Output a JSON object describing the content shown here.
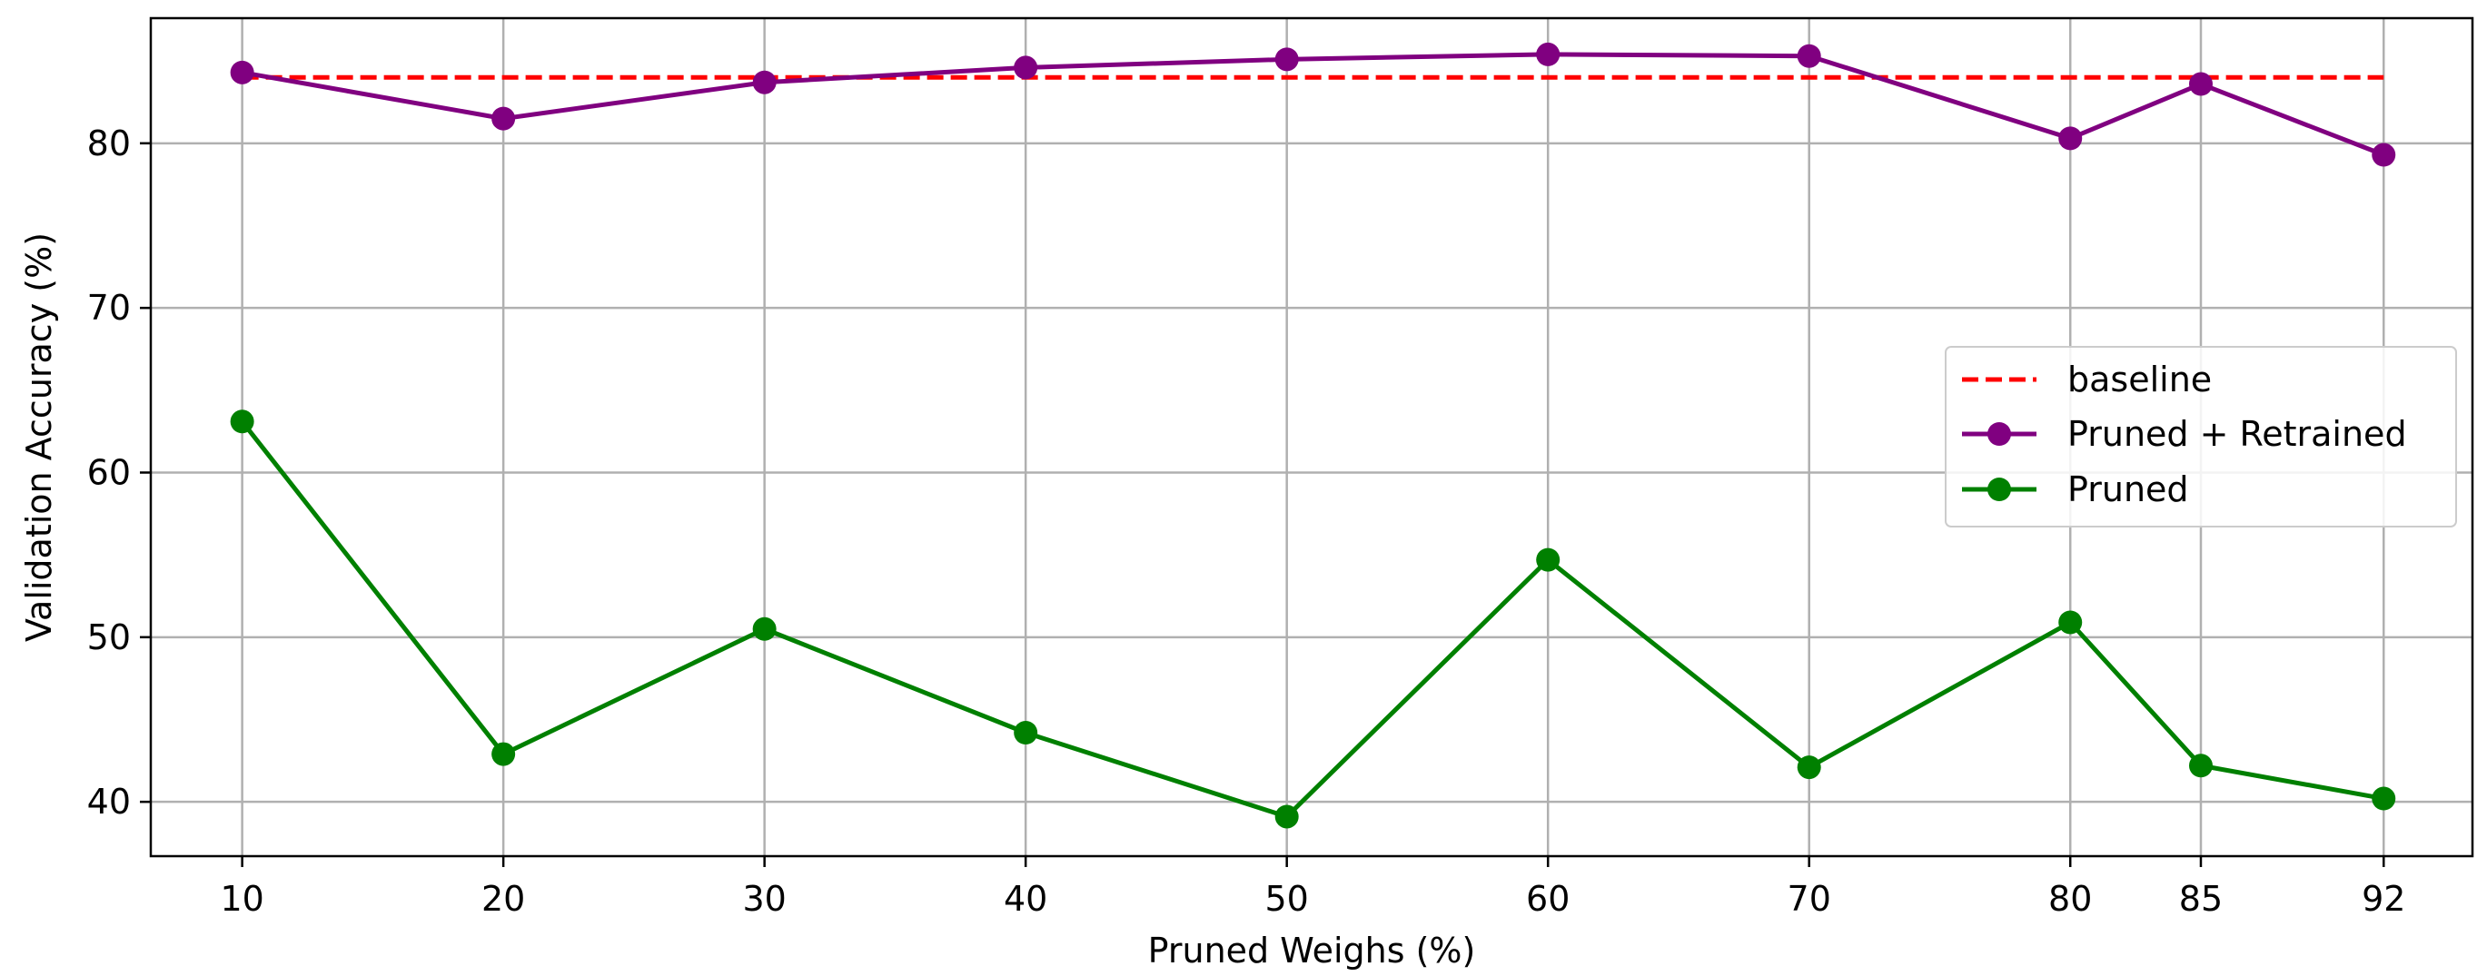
{
  "chart_data": {
    "type": "line",
    "xlabel": "Pruned Weighs (%)",
    "ylabel": "Validation Accuracy (%)",
    "x": [
      10,
      20,
      30,
      40,
      50,
      60,
      70,
      80,
      85,
      92
    ],
    "xlim": [
      6.5,
      95.4
    ],
    "ylim": [
      36.7,
      87.6
    ],
    "xticks": [
      10,
      20,
      30,
      40,
      50,
      60,
      70,
      80,
      85,
      92
    ],
    "yticks": [
      40,
      50,
      60,
      70,
      80
    ],
    "grid": true,
    "legend_position": "center-right",
    "baseline": {
      "name": "baseline",
      "value": 84,
      "color": "#ff0000",
      "style": "dashed"
    },
    "series": [
      {
        "name": "Pruned + Retrained",
        "color": "#800080",
        "values": [
          84.3,
          81.5,
          83.7,
          84.6,
          85.1,
          85.4,
          85.3,
          80.3,
          83.6,
          79.3
        ]
      },
      {
        "name": "Pruned",
        "color": "#008000",
        "values": [
          63.1,
          42.9,
          50.5,
          44.2,
          39.1,
          54.7,
          42.1,
          50.9,
          42.2,
          40.2
        ]
      }
    ]
  }
}
